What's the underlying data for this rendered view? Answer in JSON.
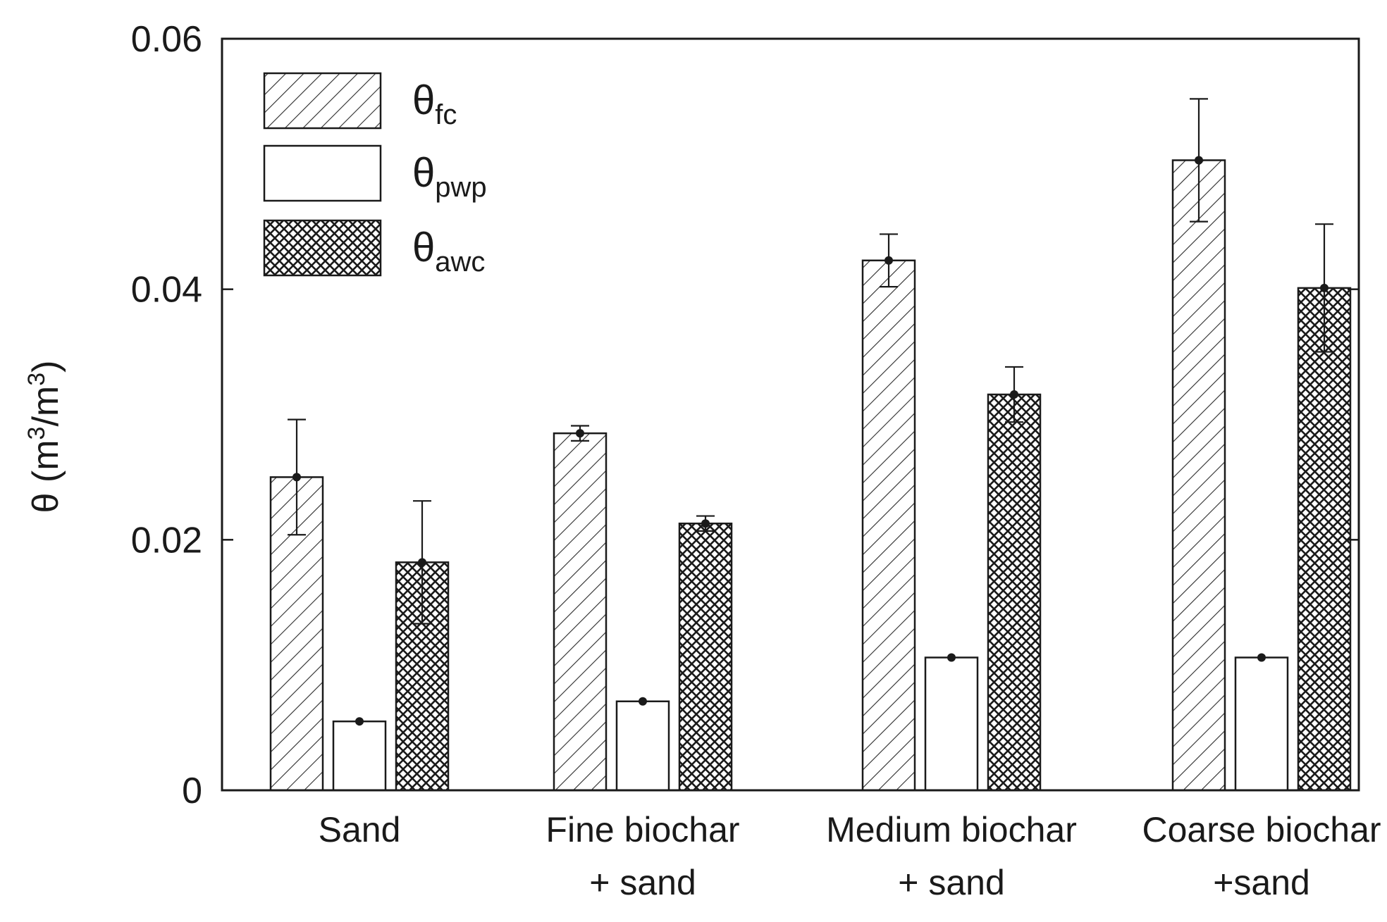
{
  "chart_data": {
    "type": "bar",
    "title": "",
    "xlabel": "",
    "ylabel": {
      "symbol": "θ",
      "unit_open": " (m",
      "sup1": "3",
      "unit_mid": "/m",
      "sup2": "3",
      "unit_close": ")"
    },
    "ylim": [
      0,
      0.06
    ],
    "yticks": [
      {
        "value": 0,
        "label": "0"
      },
      {
        "value": 0.02,
        "label": "0.02"
      },
      {
        "value": 0.04,
        "label": "0.04"
      },
      {
        "value": 0.06,
        "label": "0.06"
      }
    ],
    "grid": false,
    "legend_position": "top-left",
    "categories": [
      {
        "line1": "Sand",
        "line2": ""
      },
      {
        "line1": "Fine biochar",
        "line2": "+ sand"
      },
      {
        "line1": "Medium biochar",
        "line2": "+ sand"
      },
      {
        "line1": "Coarse biochar",
        "line2": "+sand"
      }
    ],
    "series": [
      {
        "symbol": "θ",
        "subscript": "fc",
        "pattern": "diagonal-hatch",
        "values": [
          0.025,
          0.0285,
          0.0423,
          0.0503
        ],
        "errors": [
          0.0046,
          0.0006,
          0.0021,
          0.0049
        ]
      },
      {
        "symbol": "θ",
        "subscript": "pwp",
        "pattern": "plain-white",
        "values": [
          0.0055,
          0.0071,
          0.0106,
          0.0106
        ],
        "errors": [
          0.0,
          0.0,
          0.0,
          0.0
        ]
      },
      {
        "symbol": "θ",
        "subscript": "awc",
        "pattern": "crosshatch",
        "values": [
          0.0182,
          0.0213,
          0.0316,
          0.0401
        ],
        "errors": [
          0.0049,
          0.0006,
          0.0022,
          0.0051
        ]
      }
    ]
  }
}
